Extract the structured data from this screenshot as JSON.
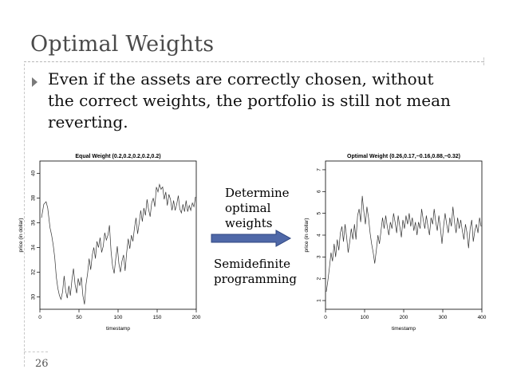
{
  "slide": {
    "title": "Optimal Weights",
    "bullet": "Even if the assets are correctly chosen, without the correct weights, the portfolio is still not mean reverting.",
    "middle_top_label": "Determine optimal weights",
    "middle_bottom_label": "Semidefinite programming",
    "slide_number": "26",
    "arrow_color": "#4f68a8"
  },
  "chart_data": [
    {
      "type": "line",
      "title": "Equal Weight (0.2,0.2,0.2,0.2,0.2)",
      "xlabel": "timestamp",
      "ylabel": "price (in dollar)",
      "xlim": [
        0,
        200
      ],
      "ylim": [
        29,
        41
      ],
      "xticks": [
        "0",
        "50",
        "100",
        "150",
        "200"
      ],
      "yticks": [
        "30",
        "32",
        "34",
        "36",
        "38",
        "40"
      ],
      "x": [
        2,
        5,
        8,
        10,
        13,
        15,
        17,
        19,
        21,
        23,
        25,
        27,
        29,
        31,
        33,
        35,
        37,
        39,
        41,
        43,
        45,
        47,
        49,
        51,
        53,
        55,
        57,
        59,
        61,
        63,
        65,
        67,
        69,
        71,
        73,
        75,
        77,
        79,
        81,
        83,
        85,
        87,
        89,
        91,
        93,
        95,
        97,
        99,
        101,
        103,
        105,
        107,
        109,
        111,
        113,
        115,
        117,
        119,
        121,
        123,
        125,
        127,
        129,
        131,
        133,
        135,
        137,
        139,
        141,
        143,
        145,
        147,
        149,
        151,
        153,
        155,
        157,
        159,
        161,
        163,
        165,
        167,
        169,
        171,
        173,
        175,
        177,
        179,
        181,
        183,
        185,
        187,
        189,
        191,
        193,
        195,
        197,
        199
      ],
      "series": [
        {
          "values": [
            36.4,
            37.5,
            37.7,
            37.2,
            35.6,
            35.0,
            34.2,
            33.2,
            31.6,
            30.7,
            30.1,
            29.8,
            30.4,
            31.7,
            30.5,
            29.9,
            30.9,
            30.1,
            31.4,
            32.3,
            31.0,
            30.3,
            31.5,
            30.9,
            31.6,
            30.1,
            29.4,
            31.0,
            31.9,
            33.1,
            32.2,
            33.4,
            34.0,
            33.1,
            34.5,
            34.0,
            34.8,
            33.6,
            34.1,
            35.2,
            34.6,
            35.0,
            35.8,
            33.7,
            32.5,
            31.9,
            33.1,
            34.1,
            32.7,
            32.0,
            32.9,
            33.4,
            32.1,
            33.6,
            34.7,
            33.9,
            35.0,
            34.5,
            35.6,
            36.4,
            35.1,
            36.0,
            37.0,
            36.1,
            37.2,
            36.6,
            37.9,
            37.1,
            36.5,
            37.6,
            38.0,
            37.3,
            38.9,
            38.5,
            39.1,
            38.7,
            38.9,
            37.9,
            38.5,
            37.4,
            38.3,
            37.9,
            37.0,
            37.8,
            37.0,
            37.5,
            38.2,
            37.1,
            36.8,
            37.5,
            36.9,
            37.8,
            36.9,
            37.4,
            37.0,
            37.6,
            37.3,
            38.1
          ]
        }
      ]
    },
    {
      "type": "line",
      "title": "Optimal Weight (0.26,0.17,−0.16,0.88,−0.32)",
      "xlabel": "timestamp",
      "ylabel": "price (in dollar)",
      "xlim": [
        0,
        400
      ],
      "ylim": [
        0.6,
        7.4
      ],
      "xticks": [
        "0",
        "100",
        "200",
        "300",
        "400"
      ],
      "yticks": [
        "1",
        "2",
        "3",
        "4",
        "5",
        "6",
        "7"
      ],
      "x": [
        2,
        6,
        10,
        14,
        18,
        22,
        26,
        30,
        34,
        38,
        42,
        46,
        50,
        54,
        58,
        62,
        66,
        70,
        74,
        78,
        82,
        86,
        90,
        94,
        98,
        102,
        106,
        110,
        114,
        118,
        122,
        126,
        130,
        134,
        138,
        142,
        146,
        150,
        154,
        158,
        162,
        166,
        170,
        174,
        178,
        182,
        186,
        190,
        194,
        198,
        202,
        206,
        210,
        214,
        218,
        222,
        226,
        230,
        234,
        238,
        242,
        246,
        250,
        254,
        258,
        262,
        266,
        270,
        274,
        278,
        282,
        286,
        290,
        294,
        298,
        302,
        306,
        310,
        314,
        318,
        322,
        326,
        330,
        334,
        338,
        342,
        346,
        350,
        354,
        358,
        362,
        366,
        370,
        374,
        378,
        382,
        386,
        390,
        394,
        398
      ],
      "series": [
        {
          "values": [
            1.4,
            1.9,
            2.5,
            3.2,
            2.8,
            3.6,
            3.0,
            3.8,
            3.3,
            4.1,
            4.4,
            3.7,
            4.5,
            3.9,
            3.2,
            3.7,
            4.3,
            3.8,
            4.5,
            3.8,
            4.9,
            5.2,
            4.6,
            5.8,
            5.1,
            4.5,
            5.3,
            4.8,
            4.1,
            3.6,
            3.2,
            2.7,
            3.3,
            4.0,
            3.6,
            4.2,
            4.8,
            4.3,
            4.9,
            4.4,
            4.0,
            4.6,
            4.3,
            5.0,
            4.6,
            4.1,
            4.9,
            4.4,
            3.9,
            4.7,
            4.3,
            4.9,
            4.5,
            5.0,
            4.4,
            4.8,
            4.2,
            4.6,
            4.0,
            4.6,
            4.3,
            5.2,
            4.7,
            4.3,
            4.9,
            4.4,
            4.0,
            4.8,
            4.5,
            5.2,
            4.6,
            4.2,
            4.9,
            4.3,
            3.6,
            4.4,
            5.0,
            4.5,
            4.1,
            4.8,
            4.4,
            5.3,
            4.6,
            4.1,
            4.8,
            4.3,
            4.7,
            4.2,
            3.8,
            4.5,
            4.1,
            3.4,
            4.3,
            4.7,
            3.7,
            4.2,
            4.5,
            4.1,
            4.8,
            4.4
          ]
        }
      ]
    }
  ]
}
